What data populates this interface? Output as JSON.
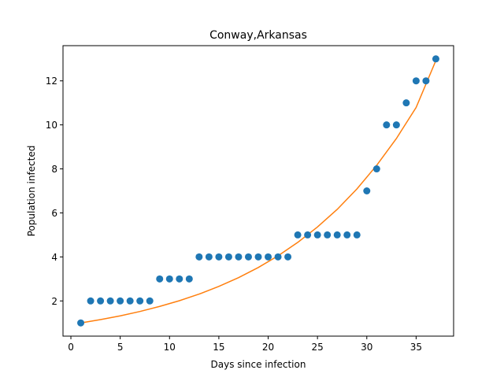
{
  "chart_data": {
    "type": "scatter",
    "title": "Conway,Arkansas",
    "xlabel": "Days since infection",
    "ylabel": "Population infected",
    "xlim": [
      -0.8,
      38.8
    ],
    "ylim": [
      0.4,
      13.6
    ],
    "xticks": [
      0,
      5,
      10,
      15,
      20,
      25,
      30,
      35
    ],
    "yticks": [
      2,
      4,
      6,
      8,
      10,
      12
    ],
    "grid": false,
    "legend": "none",
    "series": [
      {
        "kind": "scatter",
        "color": "#1f77b4",
        "x": [
          1,
          2,
          3,
          4,
          5,
          6,
          7,
          8,
          9,
          10,
          11,
          12,
          13,
          14,
          15,
          16,
          17,
          18,
          19,
          20,
          21,
          22,
          23,
          24,
          25,
          26,
          27,
          28,
          29,
          30,
          31,
          32,
          33,
          34,
          35,
          36,
          37
        ],
        "y": [
          1,
          2,
          2,
          2,
          2,
          2,
          2,
          2,
          3,
          3,
          3,
          3,
          4,
          4,
          4,
          4,
          4,
          4,
          4,
          4,
          4,
          4,
          5,
          5,
          5,
          5,
          5,
          5,
          5,
          7,
          8,
          10,
          10,
          11,
          12,
          12,
          13
        ]
      },
      {
        "kind": "line",
        "color": "#ff7f0e",
        "x": [
          1,
          3,
          5,
          7,
          9,
          11,
          13,
          15,
          17,
          19,
          21,
          23,
          25,
          27,
          29,
          31,
          33,
          35,
          37
        ],
        "y": [
          1.0,
          1.15,
          1.32,
          1.52,
          1.75,
          2.01,
          2.31,
          2.66,
          3.06,
          3.52,
          4.05,
          4.66,
          5.36,
          6.16,
          7.09,
          8.16,
          9.38,
          10.79,
          12.92
        ]
      }
    ]
  }
}
